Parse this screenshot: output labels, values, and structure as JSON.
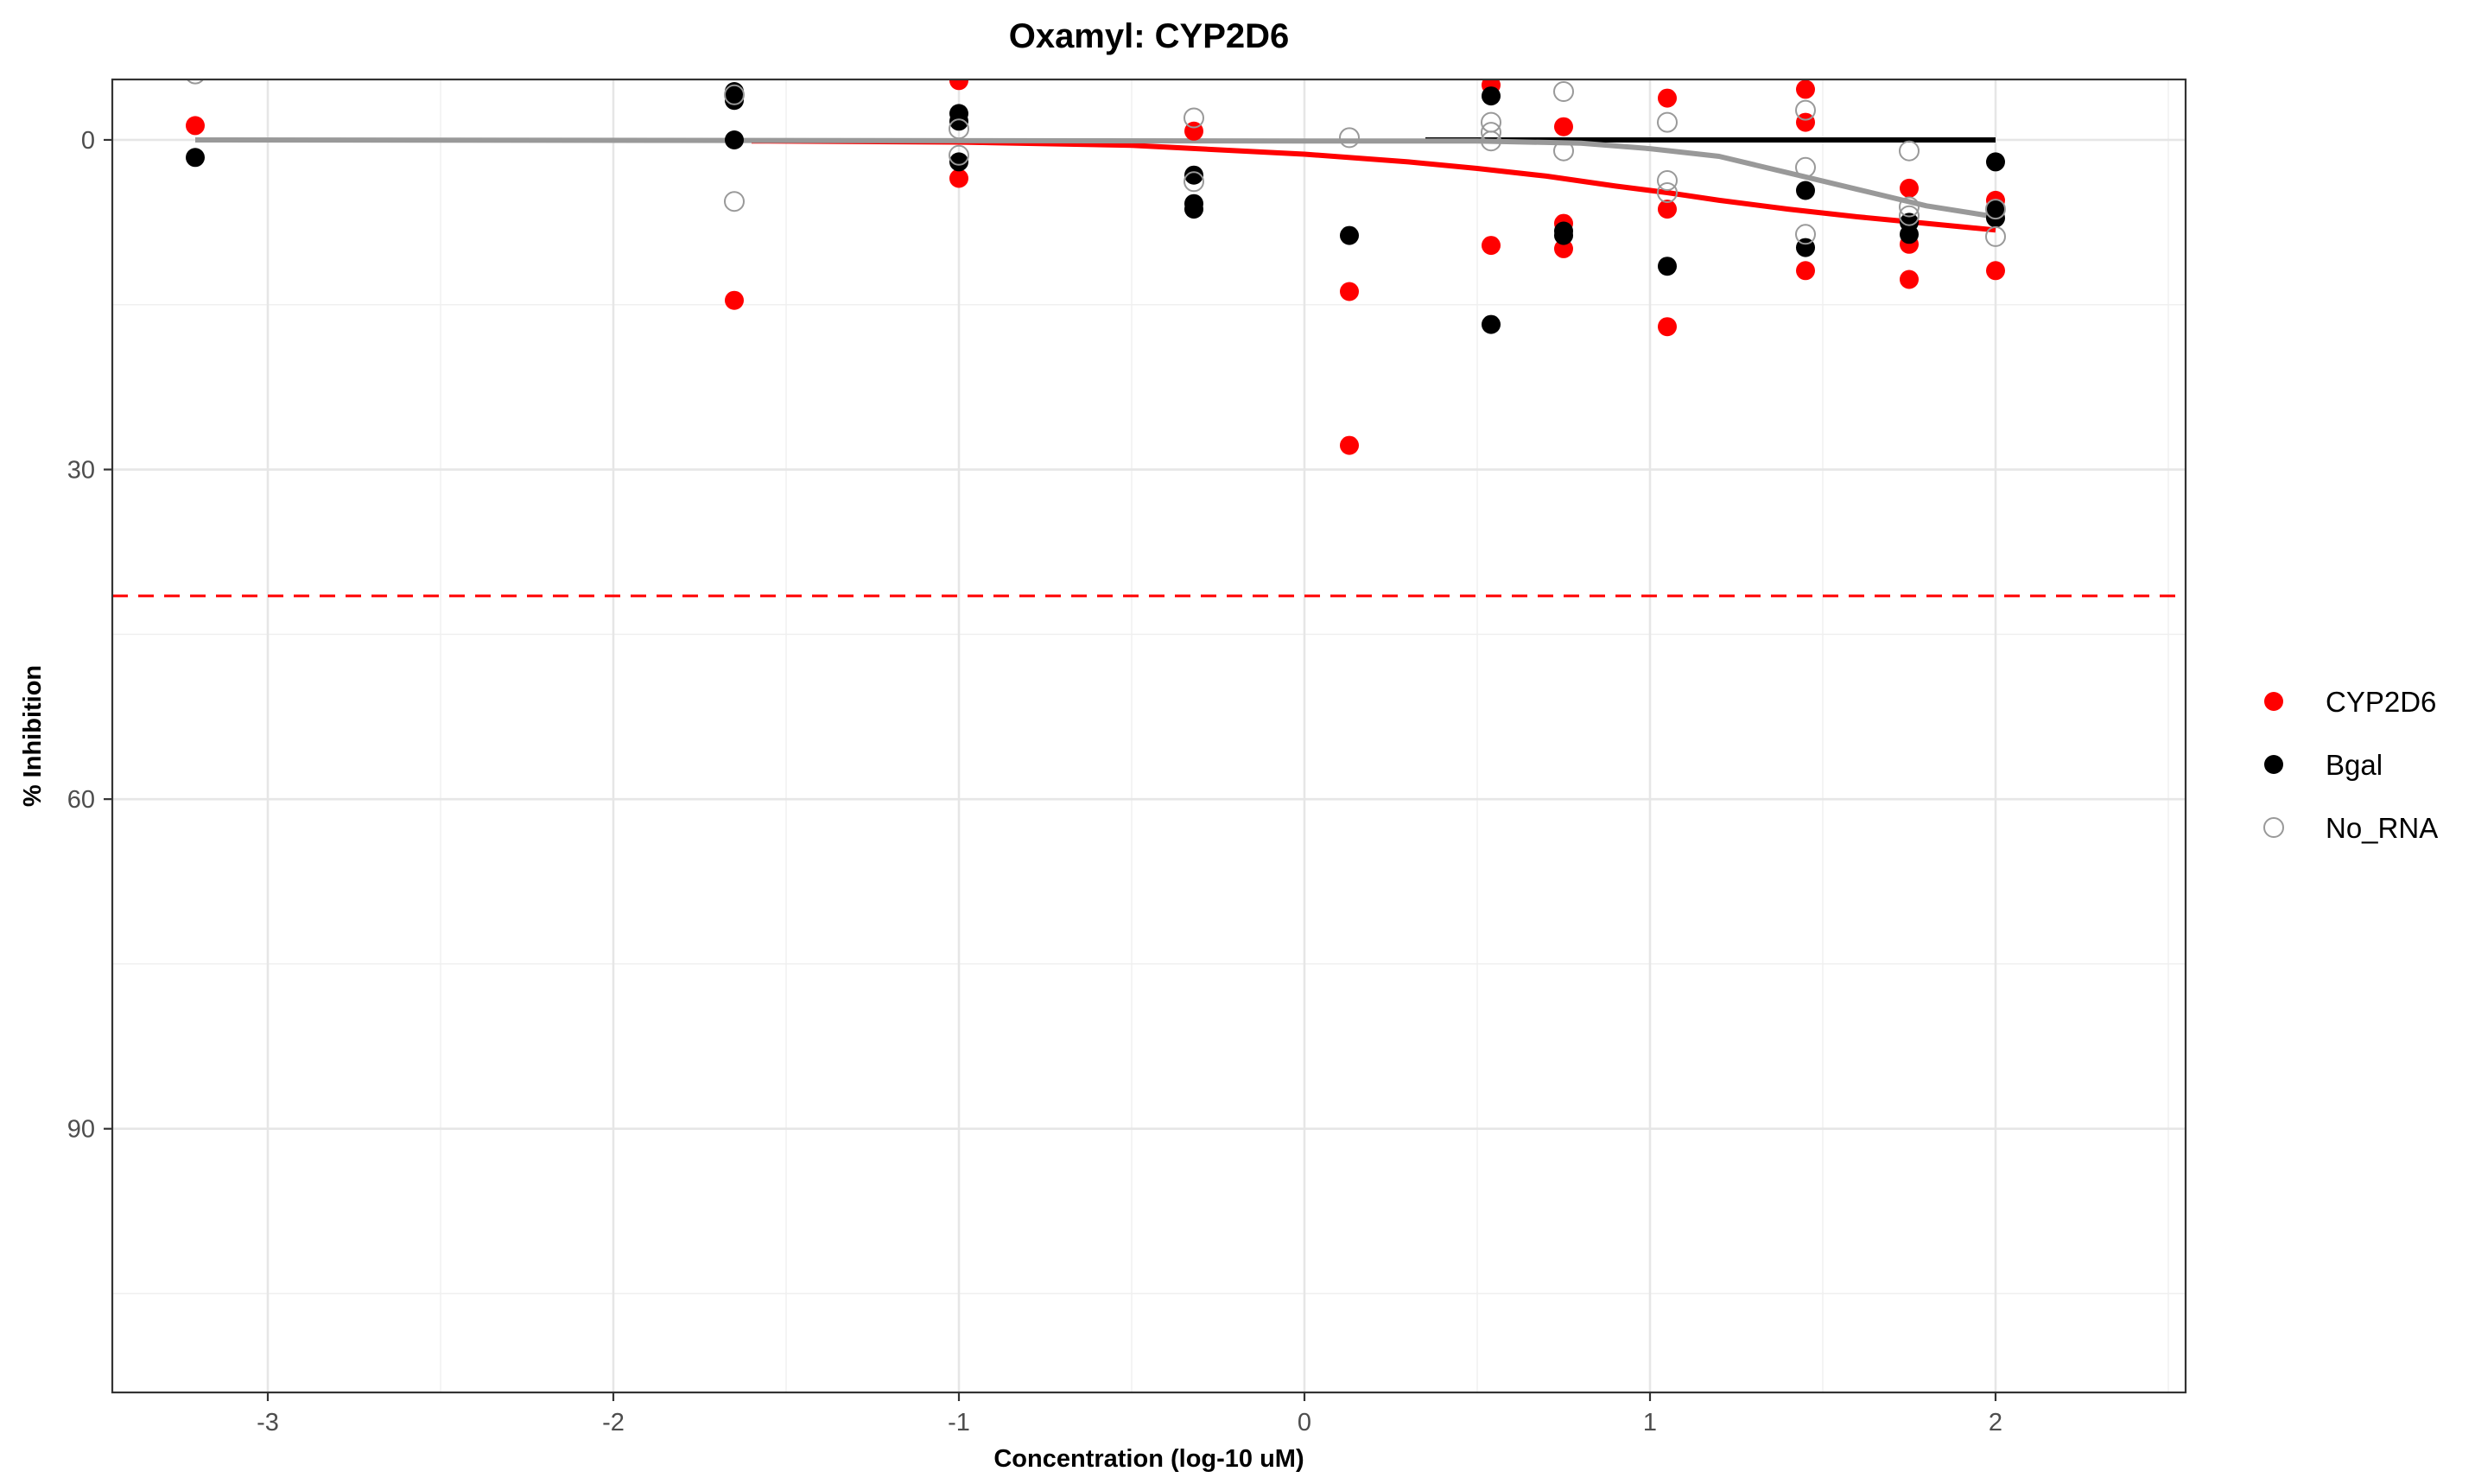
{
  "chart_data": {
    "type": "scatter",
    "title": "Oxamyl: CYP2D6",
    "xlabel": "Concentration (log-10 uM)",
    "ylabel": "% Inhibition",
    "xlim": [
      -3.45,
      2.55
    ],
    "ylim": [
      -5.5,
      114
    ],
    "y_reversed": true,
    "grid": true,
    "legend_position": "right",
    "x_ticks": [
      -3,
      -2,
      -1,
      0,
      1,
      2
    ],
    "x_tick_labels": [
      "-3",
      "-2",
      "-1",
      "0",
      "1",
      "2"
    ],
    "y_ticks": [
      0,
      30,
      60,
      90
    ],
    "y_tick_labels": [
      "0",
      "30",
      "60",
      "90"
    ],
    "threshold_line": {
      "y": 41.5,
      "color": "#FF0000",
      "style": "dashed"
    },
    "series": [
      {
        "name": "CYP2D6",
        "color": "#FF0000",
        "marker": "filled-circle",
        "points": [
          [
            -3.21,
            -1.3
          ],
          [
            -1.65,
            14.6
          ],
          [
            -1.0,
            -5.4
          ],
          [
            -1.0,
            3.5
          ],
          [
            -0.32,
            -0.8
          ],
          [
            0.13,
            13.8
          ],
          [
            0.13,
            27.8
          ],
          [
            0.54,
            9.6
          ],
          [
            0.54,
            -5.0
          ],
          [
            0.75,
            7.6
          ],
          [
            0.75,
            9.9
          ],
          [
            0.75,
            -1.2
          ],
          [
            1.05,
            -3.8
          ],
          [
            1.05,
            6.3
          ],
          [
            1.05,
            17.0
          ],
          [
            1.45,
            -4.6
          ],
          [
            1.45,
            11.9
          ],
          [
            1.45,
            -1.6
          ],
          [
            1.75,
            4.4
          ],
          [
            1.75,
            9.5
          ],
          [
            1.75,
            12.7
          ],
          [
            2.0,
            5.5
          ],
          [
            2.0,
            6.2
          ],
          [
            2.0,
            11.9
          ]
        ],
        "curve": [
          [
            -1.6,
            0.1
          ],
          [
            -1.0,
            0.2
          ],
          [
            -0.5,
            0.5
          ],
          [
            0.0,
            1.3
          ],
          [
            0.3,
            2.0
          ],
          [
            0.5,
            2.6
          ],
          [
            0.7,
            3.3
          ],
          [
            0.9,
            4.2
          ],
          [
            1.05,
            4.8
          ],
          [
            1.2,
            5.5
          ],
          [
            1.4,
            6.3
          ],
          [
            1.6,
            7.0
          ],
          [
            1.8,
            7.6
          ],
          [
            2.0,
            8.2
          ]
        ]
      },
      {
        "name": "Bgal",
        "color": "#000000",
        "marker": "filled-circle",
        "points": [
          [
            -3.21,
            1.6
          ],
          [
            -1.65,
            -4.4
          ],
          [
            -1.65,
            -3.6
          ],
          [
            -1.65,
            0.0
          ],
          [
            -1.0,
            -2.4
          ],
          [
            -1.0,
            -1.7
          ],
          [
            -1.0,
            2.0
          ],
          [
            -0.32,
            3.2
          ],
          [
            -0.32,
            5.8
          ],
          [
            -0.32,
            6.3
          ],
          [
            0.13,
            8.7
          ],
          [
            0.54,
            -4.0
          ],
          [
            0.54,
            16.8
          ],
          [
            0.75,
            8.3
          ],
          [
            0.75,
            8.7
          ],
          [
            1.05,
            11.5
          ],
          [
            1.45,
            4.6
          ],
          [
            1.45,
            9.8
          ],
          [
            1.75,
            7.5
          ],
          [
            1.75,
            8.6
          ],
          [
            2.0,
            2.0
          ],
          [
            2.0,
            6.3
          ],
          [
            2.0,
            7.1
          ]
        ],
        "curve": [
          [
            0.35,
            0.0
          ],
          [
            2.0,
            0.0
          ]
        ]
      },
      {
        "name": "No_RNA",
        "color": "#999999",
        "marker": "open-circle",
        "points": [
          [
            -3.21,
            -6.0
          ],
          [
            -1.65,
            -4.1
          ],
          [
            -1.65,
            5.6
          ],
          [
            -1.0,
            -1.0
          ],
          [
            -1.0,
            1.4
          ],
          [
            -0.32,
            -2.0
          ],
          [
            -0.32,
            3.8
          ],
          [
            0.13,
            -0.2
          ],
          [
            0.54,
            -1.6
          ],
          [
            0.54,
            -0.7
          ],
          [
            0.54,
            0.1
          ],
          [
            0.75,
            -4.4
          ],
          [
            0.75,
            1.0
          ],
          [
            1.05,
            -1.6
          ],
          [
            1.05,
            3.7
          ],
          [
            1.05,
            4.8
          ],
          [
            1.45,
            -2.7
          ],
          [
            1.45,
            2.5
          ],
          [
            1.45,
            8.6
          ],
          [
            1.75,
            1.0
          ],
          [
            1.75,
            6.1
          ],
          [
            1.75,
            6.9
          ],
          [
            2.0,
            6.3
          ],
          [
            2.0,
            8.8
          ]
        ],
        "curve": [
          [
            -3.21,
            0.0
          ],
          [
            0.0,
            0.1
          ],
          [
            0.5,
            0.1
          ],
          [
            0.8,
            0.3
          ],
          [
            1.0,
            0.8
          ],
          [
            1.2,
            1.5
          ],
          [
            1.4,
            3.0
          ],
          [
            1.6,
            4.5
          ],
          [
            1.8,
            6.0
          ],
          [
            2.0,
            7.0
          ]
        ]
      }
    ]
  }
}
